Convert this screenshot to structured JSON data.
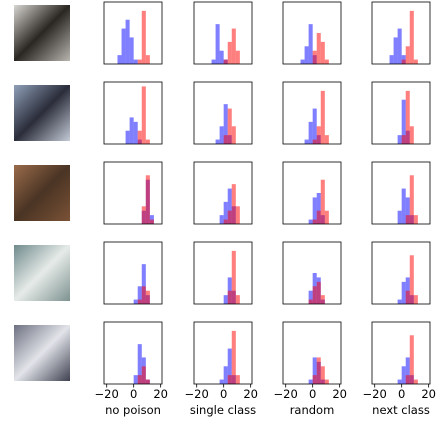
{
  "chart_data": [
    {
      "type": "histogram",
      "bins": [
        -12,
        -9,
        -6,
        -3,
        0,
        3,
        6,
        9,
        12,
        15
      ],
      "xlim": [
        -22,
        21
      ],
      "ylim": [
        0,
        14
      ],
      "series": [
        {
          "color": "#0000ff",
          "values": [
            2,
            8,
            10,
            6,
            1,
            0,
            0,
            0,
            0
          ]
        },
        {
          "color": "#ff0000",
          "values": [
            0,
            0,
            0,
            0,
            0,
            1,
            12,
            2,
            0
          ]
        }
      ]
    },
    {
      "type": "histogram",
      "bins": [
        -12,
        -9,
        -6,
        -3,
        0,
        3,
        6,
        9,
        12,
        15
      ],
      "xlim": [
        -22,
        21
      ],
      "ylim": [
        0,
        14
      ],
      "series": [
        {
          "color": "#0000ff",
          "values": [
            0,
            1,
            9,
            3,
            1,
            0,
            0,
            0,
            0
          ]
        },
        {
          "color": "#ff0000",
          "values": [
            0,
            0,
            0,
            0,
            1,
            5,
            8,
            3,
            0
          ]
        }
      ]
    },
    {
      "type": "histogram",
      "bins": [
        -12,
        -9,
        -6,
        -3,
        0,
        3,
        6,
        9,
        12,
        15
      ],
      "xlim": [
        -22,
        21
      ],
      "ylim": [
        0,
        14
      ],
      "series": [
        {
          "color": "#0000ff",
          "values": [
            0,
            1,
            4,
            9,
            2,
            0,
            0,
            0,
            0
          ]
        },
        {
          "color": "#ff0000",
          "values": [
            0,
            0,
            0,
            0,
            3,
            7,
            5,
            1,
            0
          ]
        }
      ]
    },
    {
      "type": "histogram",
      "bins": [
        -12,
        -9,
        -6,
        -3,
        0,
        3,
        6,
        9,
        12,
        15
      ],
      "xlim": [
        -22,
        21
      ],
      "ylim": [
        0,
        14
      ],
      "series": [
        {
          "color": "#0000ff",
          "values": [
            0,
            2,
            6,
            8,
            2,
            0,
            0,
            0,
            0
          ]
        },
        {
          "color": "#ff0000",
          "values": [
            0,
            0,
            0,
            0,
            1,
            4,
            12,
            1,
            0
          ]
        }
      ]
    },
    {
      "type": "histogram",
      "bins": [
        -12,
        -9,
        -6,
        -3,
        0,
        3,
        6,
        9,
        12,
        15
      ],
      "xlim": [
        -22,
        21
      ],
      "ylim": [
        0,
        14
      ],
      "series": [
        {
          "color": "#0000ff",
          "values": [
            0,
            0,
            3,
            6,
            5,
            1,
            0,
            0,
            0
          ]
        },
        {
          "color": "#ff0000",
          "values": [
            0,
            0,
            0,
            0,
            0,
            3,
            13,
            1,
            0
          ]
        }
      ]
    },
    {
      "type": "histogram",
      "bins": [
        -12,
        -9,
        -6,
        -3,
        0,
        3,
        6,
        9,
        12,
        15
      ],
      "xlim": [
        -22,
        21
      ],
      "ylim": [
        0,
        14
      ],
      "series": [
        {
          "color": "#0000ff",
          "values": [
            0,
            0,
            1,
            4,
            9,
            2,
            0,
            0,
            0
          ]
        },
        {
          "color": "#ff0000",
          "values": [
            0,
            0,
            0,
            0,
            2,
            8,
            4,
            0,
            0
          ]
        }
      ]
    },
    {
      "type": "histogram",
      "bins": [
        -12,
        -9,
        -6,
        -3,
        0,
        3,
        6,
        9,
        12,
        15
      ],
      "xlim": [
        -22,
        21
      ],
      "ylim": [
        0,
        14
      ],
      "series": [
        {
          "color": "#0000ff",
          "values": [
            0,
            0,
            1,
            5,
            8,
            2,
            0,
            0,
            0
          ]
        },
        {
          "color": "#ff0000",
          "values": [
            0,
            0,
            0,
            0,
            1,
            4,
            12,
            2,
            0
          ]
        }
      ]
    },
    {
      "type": "histogram",
      "bins": [
        -12,
        -9,
        -6,
        -3,
        0,
        3,
        6,
        9,
        12,
        15
      ],
      "xlim": [
        -22,
        21
      ],
      "ylim": [
        0,
        14
      ],
      "series": [
        {
          "color": "#0000ff",
          "values": [
            0,
            0,
            0,
            2,
            10,
            3,
            0,
            0,
            0
          ]
        },
        {
          "color": "#ff0000",
          "values": [
            0,
            0,
            0,
            0,
            2,
            12,
            4,
            0,
            0
          ]
        }
      ]
    },
    {
      "type": "histogram",
      "bins": [
        -12,
        -9,
        -6,
        -3,
        0,
        3,
        6,
        9,
        12,
        15
      ],
      "xlim": [
        -22,
        21
      ],
      "ylim": [
        0,
        14
      ],
      "series": [
        {
          "color": "#0000ff",
          "values": [
            0,
            0,
            0,
            0,
            0,
            0,
            3,
            10,
            2
          ]
        },
        {
          "color": "#ff0000",
          "values": [
            0,
            0,
            0,
            0,
            0,
            0,
            4,
            11,
            1
          ]
        }
      ]
    },
    {
      "type": "histogram",
      "bins": [
        -12,
        -9,
        -6,
        -3,
        0,
        3,
        6,
        9,
        12,
        15
      ],
      "xlim": [
        -22,
        21
      ],
      "ylim": [
        0,
        14
      ],
      "series": [
        {
          "color": "#0000ff",
          "values": [
            0,
            0,
            0,
            2,
            5,
            8,
            4,
            0,
            0
          ]
        },
        {
          "color": "#ff0000",
          "values": [
            0,
            0,
            0,
            0,
            1,
            3,
            9,
            4,
            0
          ]
        }
      ]
    },
    {
      "type": "histogram",
      "bins": [
        -12,
        -9,
        -6,
        -3,
        0,
        3,
        6,
        9,
        12,
        15
      ],
      "xlim": [
        -22,
        21
      ],
      "ylim": [
        0,
        14
      ],
      "series": [
        {
          "color": "#0000ff",
          "values": [
            0,
            0,
            0,
            1,
            6,
            7,
            2,
            0,
            0
          ]
        },
        {
          "color": "#ff0000",
          "values": [
            0,
            0,
            0,
            0,
            1,
            3,
            10,
            3,
            0
          ]
        }
      ]
    },
    {
      "type": "histogram",
      "bins": [
        -12,
        -9,
        -6,
        -3,
        0,
        3,
        6,
        9,
        12,
        15
      ],
      "xlim": [
        -22,
        21
      ],
      "ylim": [
        0,
        14
      ],
      "series": [
        {
          "color": "#0000ff",
          "values": [
            0,
            0,
            0,
            3,
            8,
            6,
            2,
            0,
            0
          ]
        },
        {
          "color": "#ff0000",
          "values": [
            0,
            0,
            0,
            0,
            0,
            2,
            11,
            2,
            0
          ]
        }
      ]
    },
    {
      "type": "histogram",
      "bins": [
        -12,
        -9,
        -6,
        -3,
        0,
        3,
        6,
        9,
        12,
        15
      ],
      "xlim": [
        -22,
        21
      ],
      "ylim": [
        0,
        14
      ],
      "series": [
        {
          "color": "#0000ff",
          "values": [
            0,
            0,
            0,
            0,
            1,
            4,
            9,
            2,
            0
          ]
        },
        {
          "color": "#ff0000",
          "values": [
            0,
            0,
            0,
            0,
            0,
            1,
            4,
            3,
            0
          ]
        }
      ]
    },
    {
      "type": "histogram",
      "bins": [
        -12,
        -9,
        -6,
        -3,
        0,
        3,
        6,
        9,
        12,
        15
      ],
      "xlim": [
        -22,
        21
      ],
      "ylim": [
        0,
        14
      ],
      "series": [
        {
          "color": "#0000ff",
          "values": [
            0,
            0,
            0,
            0,
            2,
            6,
            3,
            0,
            0
          ]
        },
        {
          "color": "#ff0000",
          "values": [
            0,
            0,
            0,
            0,
            0,
            3,
            12,
            2,
            0
          ]
        }
      ]
    },
    {
      "type": "histogram",
      "bins": [
        -12,
        -9,
        -6,
        -3,
        0,
        3,
        6,
        9,
        12,
        15
      ],
      "xlim": [
        -22,
        21
      ],
      "ylim": [
        0,
        14
      ],
      "series": [
        {
          "color": "#0000ff",
          "values": [
            0,
            0,
            0,
            3,
            7,
            6,
            1,
            0,
            0
          ]
        },
        {
          "color": "#ff0000",
          "values": [
            0,
            0,
            0,
            1,
            4,
            5,
            2,
            0,
            0
          ]
        }
      ]
    },
    {
      "type": "histogram",
      "bins": [
        -12,
        -9,
        -6,
        -3,
        0,
        3,
        6,
        9,
        12,
        15
      ],
      "xlim": [
        -22,
        21
      ],
      "ylim": [
        0,
        14
      ],
      "series": [
        {
          "color": "#0000ff",
          "values": [
            0,
            0,
            0,
            1,
            5,
            6,
            2,
            0,
            0
          ]
        },
        {
          "color": "#ff0000",
          "values": [
            0,
            0,
            0,
            0,
            0,
            3,
            11,
            2,
            0
          ]
        }
      ]
    },
    {
      "type": "histogram",
      "bins": [
        -12,
        -9,
        -6,
        -3,
        0,
        3,
        6,
        9,
        12,
        15
      ],
      "xlim": [
        -22,
        21
      ],
      "ylim": [
        0,
        14
      ],
      "xlabel": "no poison",
      "xticks": [
        {
          "value": -20,
          "label": "−20"
        },
        0,
        20
      ],
      "series": [
        {
          "color": "#0000ff",
          "values": [
            0,
            0,
            0,
            0,
            2,
            9,
            6,
            1,
            0
          ]
        },
        {
          "color": "#ff0000",
          "values": [
            0,
            0,
            0,
            0,
            0,
            2,
            4,
            1,
            0
          ]
        }
      ]
    },
    {
      "type": "histogram",
      "bins": [
        -12,
        -9,
        -6,
        -3,
        0,
        3,
        6,
        9,
        12,
        15
      ],
      "xlim": [
        -22,
        21
      ],
      "ylim": [
        0,
        14
      ],
      "xlabel": "single class",
      "xticks": [
        {
          "value": -20,
          "label": "−20"
        },
        0,
        20
      ],
      "series": [
        {
          "color": "#0000ff",
          "values": [
            0,
            0,
            0,
            1,
            4,
            8,
            2,
            0,
            0
          ]
        },
        {
          "color": "#ff0000",
          "values": [
            0,
            0,
            0,
            0,
            0,
            2,
            12,
            2,
            0
          ]
        }
      ]
    },
    {
      "type": "histogram",
      "bins": [
        -12,
        -9,
        -6,
        -3,
        0,
        3,
        6,
        9,
        12,
        15
      ],
      "xlim": [
        -22,
        21
      ],
      "ylim": [
        0,
        14
      ],
      "xlabel": "random",
      "xticks": [
        {
          "value": -20,
          "label": "−20"
        },
        0,
        20
      ],
      "series": [
        {
          "color": "#0000ff",
          "values": [
            0,
            0,
            0,
            1,
            6,
            5,
            1,
            0,
            0
          ]
        },
        {
          "color": "#ff0000",
          "values": [
            0,
            0,
            0,
            0,
            2,
            6,
            4,
            1,
            0
          ]
        }
      ]
    },
    {
      "type": "histogram",
      "bins": [
        -12,
        -9,
        -6,
        -3,
        0,
        3,
        6,
        9,
        12,
        15
      ],
      "xlim": [
        -22,
        21
      ],
      "ylim": [
        0,
        14
      ],
      "xlabel": "next class",
      "xticks": [
        {
          "value": -20,
          "label": "−20"
        },
        0,
        20
      ],
      "series": [
        {
          "color": "#0000ff",
          "values": [
            0,
            0,
            0,
            1,
            4,
            6,
            2,
            0,
            0
          ]
        },
        {
          "color": "#ff0000",
          "values": [
            0,
            0,
            0,
            0,
            0,
            2,
            11,
            1,
            0
          ]
        }
      ]
    }
  ]
}
